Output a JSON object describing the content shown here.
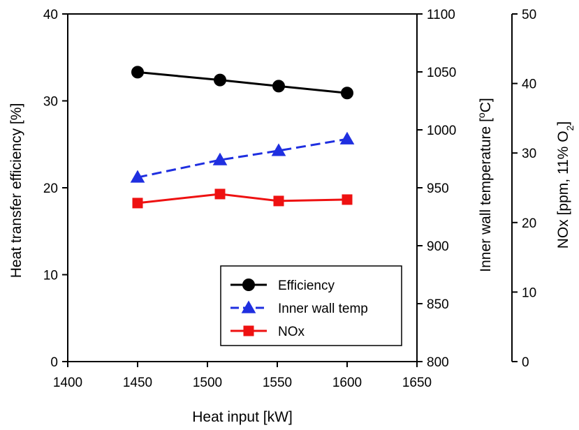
{
  "chart_data": {
    "type": "line",
    "title": "",
    "xlabel": "Heat input [kW]",
    "xlim": [
      1400,
      1650
    ],
    "xticks": [
      1400,
      1450,
      1500,
      1550,
      1600,
      1650
    ],
    "axes": {
      "left": {
        "label": "Heat transfer efficiency [%]",
        "ylim": [
          0,
          40
        ],
        "ticks": [
          0,
          10,
          20,
          30,
          40
        ]
      },
      "right1": {
        "label_main": "Inner wall temperature [",
        "label_sup": "o",
        "label_end": "C]",
        "ylim": [
          800,
          1100
        ],
        "ticks": [
          800,
          850,
          900,
          950,
          1000,
          1050,
          1100
        ]
      },
      "right2": {
        "label_main": "NOx [ppm, 11% O",
        "label_sub": "2",
        "label_end": "]",
        "ylim": [
          0,
          50
        ],
        "ticks": [
          0,
          10,
          20,
          30,
          40,
          50
        ]
      }
    },
    "series": [
      {
        "name": "Efficiency",
        "axis": "left",
        "color": "#000000",
        "marker": "circle",
        "dash": "solid",
        "x": [
          1450,
          1509,
          1551,
          1600
        ],
        "values": [
          33.3,
          32.4,
          31.7,
          30.9
        ]
      },
      {
        "name": "Inner wall temp",
        "axis": "right1",
        "color": "#1f2fe0",
        "marker": "triangle",
        "dash": "dashed",
        "x": [
          1450,
          1509,
          1551,
          1600
        ],
        "values": [
          959,
          974,
          982,
          992
        ]
      },
      {
        "name": "NOx",
        "axis": "right2",
        "color": "#ee1111",
        "marker": "square",
        "dash": "solid",
        "x": [
          1450,
          1509,
          1551,
          1600
        ],
        "values": [
          22.8,
          24.1,
          23.1,
          23.3
        ]
      }
    ],
    "legend": {
      "position": "bottom-right",
      "entries": [
        "Efficiency",
        "Inner wall temp",
        "NOx"
      ]
    },
    "grid": false
  }
}
